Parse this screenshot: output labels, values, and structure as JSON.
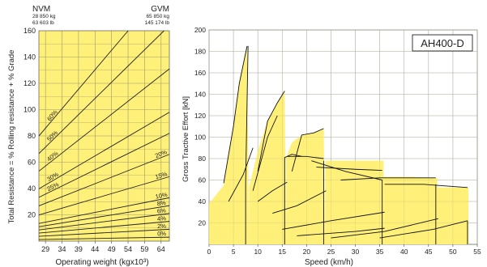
{
  "chart_data": [
    {
      "type": "line",
      "ylabel": "Total Resistance = % Rolling resistance + % Grade",
      "xlabel": "Operating weight (kgx10³)",
      "xlim": [
        27,
        66.5
      ],
      "ylim": [
        0,
        160
      ],
      "x_ticks": [
        "29",
        "34",
        "39",
        "44",
        "49",
        "54",
        "59",
        "64"
      ],
      "x_tick_values": [
        29,
        34,
        39,
        44,
        49,
        54,
        59,
        64
      ],
      "y_ticks": [
        "20",
        "40",
        "60",
        "80",
        "100",
        "120",
        "140",
        "160"
      ],
      "y_tick_values": [
        20,
        40,
        60,
        80,
        100,
        120,
        140,
        160
      ],
      "nvm": {
        "label": "NVM",
        "kg": "28 850 kg",
        "lb": "63 603 lb",
        "weight": 28.85
      },
      "gvm": {
        "label": "GVM",
        "kg": "65 850 kg",
        "lb": "145 174 lb",
        "weight": 65.85
      },
      "fill_color": "#fff07a",
      "grid": true,
      "series": [
        {
          "grade_pct": 0,
          "label": "0%",
          "y_at_xmax": 3
        },
        {
          "grade_pct": 2,
          "label": "2%",
          "y_at_xmax": 9
        },
        {
          "grade_pct": 4,
          "label": "4%",
          "y_at_xmax": 15
        },
        {
          "grade_pct": 6,
          "label": "6%",
          "y_at_xmax": 21
        },
        {
          "grade_pct": 8,
          "label": "8%",
          "y_at_xmax": 27
        },
        {
          "grade_pct": 10,
          "label": "10%",
          "y_at_xmax": 33
        },
        {
          "grade_pct": 15,
          "label": "15%",
          "y_at_xmax": 49
        },
        {
          "grade_pct": 20,
          "label": "20%",
          "y_at_xmax": 66
        },
        {
          "grade_pct": 25,
          "label": "25%",
          "y_at_xmax": 82
        },
        {
          "grade_pct": 30,
          "label": "30%",
          "y_at_xmax": 98
        },
        {
          "grade_pct": 40,
          "label": "40%",
          "y_at_xmax": 131
        },
        {
          "grade_pct": 50,
          "label": "50%",
          "y_at_xmax": 164
        },
        {
          "grade_pct": 60,
          "label": "60%",
          "y_at_xmax": 197
        }
      ]
    },
    {
      "type": "line",
      "title": "AH400-D",
      "ylabel": "Gross Tractive Effort [kN]",
      "xlabel": "Speed (km/h)",
      "xlim": [
        0,
        55
      ],
      "ylim": [
        0,
        200
      ],
      "x_ticks": [
        "0",
        "5",
        "10",
        "15",
        "20",
        "25",
        "30",
        "35",
        "40",
        "45",
        "50",
        "55"
      ],
      "x_tick_values": [
        0,
        5,
        10,
        15,
        20,
        25,
        30,
        35,
        40,
        45,
        50,
        55
      ],
      "y_ticks": [
        "20",
        "40",
        "60",
        "80",
        "100",
        "120",
        "140",
        "160",
        "180",
        "200"
      ],
      "y_tick_values": [
        20,
        40,
        60,
        80,
        100,
        120,
        140,
        160,
        180,
        200
      ],
      "fill_color": "#fff07a",
      "grid": true,
      "envelope": [
        [
          0,
          38
        ],
        [
          3,
          55
        ],
        [
          5,
          110
        ],
        [
          6.2,
          150
        ],
        [
          7.2,
          172
        ],
        [
          7.8,
          185
        ],
        [
          8.2,
          0
        ],
        [
          8.2,
          53
        ],
        [
          10,
          87
        ],
        [
          12,
          115
        ],
        [
          14,
          132
        ],
        [
          15.5,
          143
        ],
        [
          15.8,
          0
        ],
        [
          15.8,
          81
        ],
        [
          17,
          95
        ],
        [
          19,
          102
        ],
        [
          21.5,
          104
        ],
        [
          23.5,
          108
        ],
        [
          23.8,
          0
        ],
        [
          23.8,
          78
        ],
        [
          30,
          78
        ],
        [
          35.8,
          78
        ],
        [
          35.8,
          63
        ],
        [
          41,
          63
        ],
        [
          46.8,
          62
        ],
        [
          46.8,
          53
        ],
        [
          53.2,
          53
        ],
        [
          53.2,
          0
        ]
      ],
      "series": [
        {
          "points": [
            [
              7.5,
              0
            ],
            [
              7.5,
              57
            ],
            [
              8,
              185
            ]
          ]
        },
        {
          "points": [
            [
              3,
              57
            ],
            [
              5,
              110
            ],
            [
              6.2,
              150
            ],
            [
              7.2,
              172
            ],
            [
              7.8,
              185
            ]
          ]
        },
        {
          "points": [
            [
              4,
              40
            ],
            [
              7,
              65
            ],
            [
              9,
              90
            ]
          ]
        },
        {
          "points": [
            [
              9,
              50
            ],
            [
              12,
              100
            ],
            [
              14,
              120
            ]
          ]
        },
        {
          "points": [
            [
              10,
              68
            ],
            [
              12,
              115
            ],
            [
              14,
              132
            ],
            [
              15.5,
              143
            ]
          ]
        },
        {
          "points": [
            [
              15.5,
              0
            ],
            [
              15.5,
              81
            ],
            [
              17,
              84
            ],
            [
              19,
              82
            ]
          ]
        },
        {
          "points": [
            [
              10,
              40
            ],
            [
              13,
              50
            ],
            [
              16,
              58
            ]
          ]
        },
        {
          "points": [
            [
              17,
              68
            ],
            [
              19,
              102
            ],
            [
              21.5,
              104
            ],
            [
              23.5,
              108
            ]
          ]
        },
        {
          "points": [
            [
              16,
              82
            ],
            [
              20,
              82
            ],
            [
              23.5,
              80
            ]
          ]
        },
        {
          "points": [
            [
              23.5,
              0
            ],
            [
              23.5,
              78
            ]
          ]
        },
        {
          "points": [
            [
              21,
              78
            ],
            [
              28,
              68
            ],
            [
              35.5,
              60
            ]
          ]
        },
        {
          "points": [
            [
              22,
              72
            ],
            [
              30,
              70
            ],
            [
              35.5,
              69
            ]
          ]
        },
        {
          "points": [
            [
              35.5,
              0
            ],
            [
              35.5,
              60
            ]
          ]
        },
        {
          "points": [
            [
              27,
              60
            ],
            [
              35,
              62
            ],
            [
              46.5,
              62
            ]
          ]
        },
        {
          "points": [
            [
              46.5,
              0
            ],
            [
              46.5,
              56
            ]
          ]
        },
        {
          "points": [
            [
              36,
              56
            ],
            [
              44,
              56
            ],
            [
              53,
              53
            ]
          ]
        },
        {
          "points": [
            [
              53,
              0
            ],
            [
              53,
              22
            ]
          ]
        },
        {
          "points": [
            [
              13,
              29
            ],
            [
              18,
              36
            ],
            [
              24,
              50
            ]
          ]
        },
        {
          "points": [
            [
              15,
              14
            ],
            [
              25,
              22
            ],
            [
              36,
              30
            ]
          ]
        },
        {
          "points": [
            [
              18,
              8
            ],
            [
              30,
              12
            ],
            [
              36,
              15
            ]
          ]
        },
        {
          "points": [
            [
              25,
              6
            ],
            [
              36,
              12
            ],
            [
              47,
              24
            ]
          ]
        },
        {
          "points": [
            [
              35,
              6
            ],
            [
              46,
              14
            ],
            [
              53,
              22
            ]
          ]
        }
      ]
    }
  ]
}
